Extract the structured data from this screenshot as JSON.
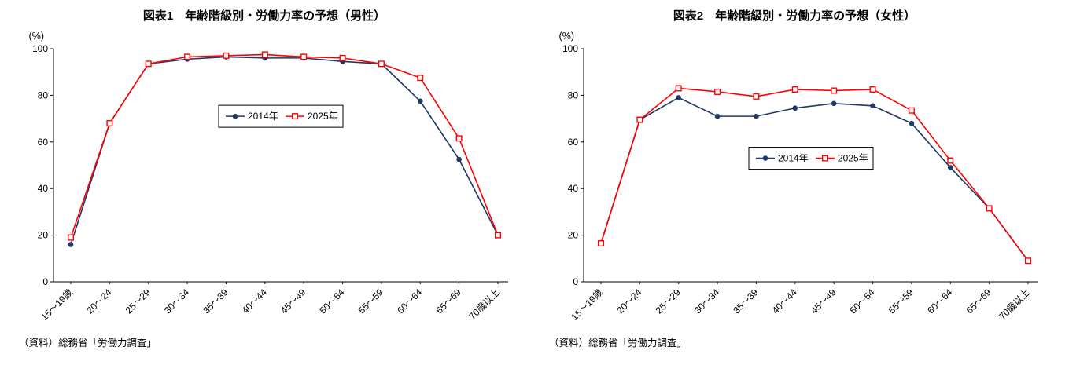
{
  "page": {
    "background": "#FFFFFF"
  },
  "colors": {
    "series_2014": "#1F3864",
    "series_2025": "#FF0000",
    "axis": "#000000",
    "legend_border": "#000000"
  },
  "charts": [
    {
      "title": "図表1　年齢階級別・労働力率の予想（男性）",
      "unit_label": "(%)",
      "source_note": "（資料）総務省「労働力調査」",
      "chart_data": {
        "type": "line",
        "categories": [
          "15～19歳",
          "20～24",
          "25～29",
          "30～34",
          "35～39",
          "40～44",
          "45～49",
          "50～54",
          "55～59",
          "60～64",
          "65～69",
          "70歳以上"
        ],
        "series": [
          {
            "name": "2014年",
            "color": "#1F3864",
            "marker": "filled-circle",
            "values": [
              16,
              68,
              93.5,
              95.5,
              96.5,
              96,
              96,
              94.5,
              93.5,
              77.5,
              52.5,
              20
            ]
          },
          {
            "name": "2025年",
            "color": "#FF0000",
            "marker": "open-square",
            "values": [
              19,
              68,
              93.5,
              96.5,
              97,
              97.5,
              96.5,
              96,
              93.5,
              87.5,
              61.5,
              20
            ]
          }
        ],
        "xlabel": "",
        "ylabel": "(%)",
        "ylim": [
          0,
          100
        ],
        "yticks": [
          0,
          20,
          40,
          60,
          80,
          100
        ],
        "grid": false,
        "legend_position": "inside",
        "legend_center": {
          "x_frac": 0.5,
          "y_frac": 0.29
        }
      }
    },
    {
      "title": "図表2　年齢階級別・労働力率の予想（女性）",
      "unit_label": "(%)",
      "source_note": "（資料）総務省「労働力調査」",
      "chart_data": {
        "type": "line",
        "categories": [
          "15～19歳",
          "20～24",
          "25～29",
          "30～34",
          "35～39",
          "40～44",
          "45～49",
          "50～54",
          "55～59",
          "60～64",
          "65～69",
          "70歳以上"
        ],
        "series": [
          {
            "name": "2014年",
            "color": "#1F3864",
            "marker": "filled-circle",
            "values": [
              16.5,
              69.5,
              79,
              71,
              71,
              74.5,
              76.5,
              75.5,
              68,
              49,
              31.5,
              9
            ]
          },
          {
            "name": "2025年",
            "color": "#FF0000",
            "marker": "open-square",
            "values": [
              16.5,
              69.5,
              83,
              81.5,
              79.5,
              82.5,
              82,
              82.5,
              73.5,
              52,
              31.5,
              9
            ]
          }
        ],
        "xlabel": "",
        "ylabel": "(%)",
        "ylim": [
          0,
          100
        ],
        "yticks": [
          0,
          20,
          40,
          60,
          80,
          100
        ],
        "grid": false,
        "legend_position": "inside",
        "legend_center": {
          "x_frac": 0.5,
          "y_frac": 0.47
        }
      }
    }
  ]
}
